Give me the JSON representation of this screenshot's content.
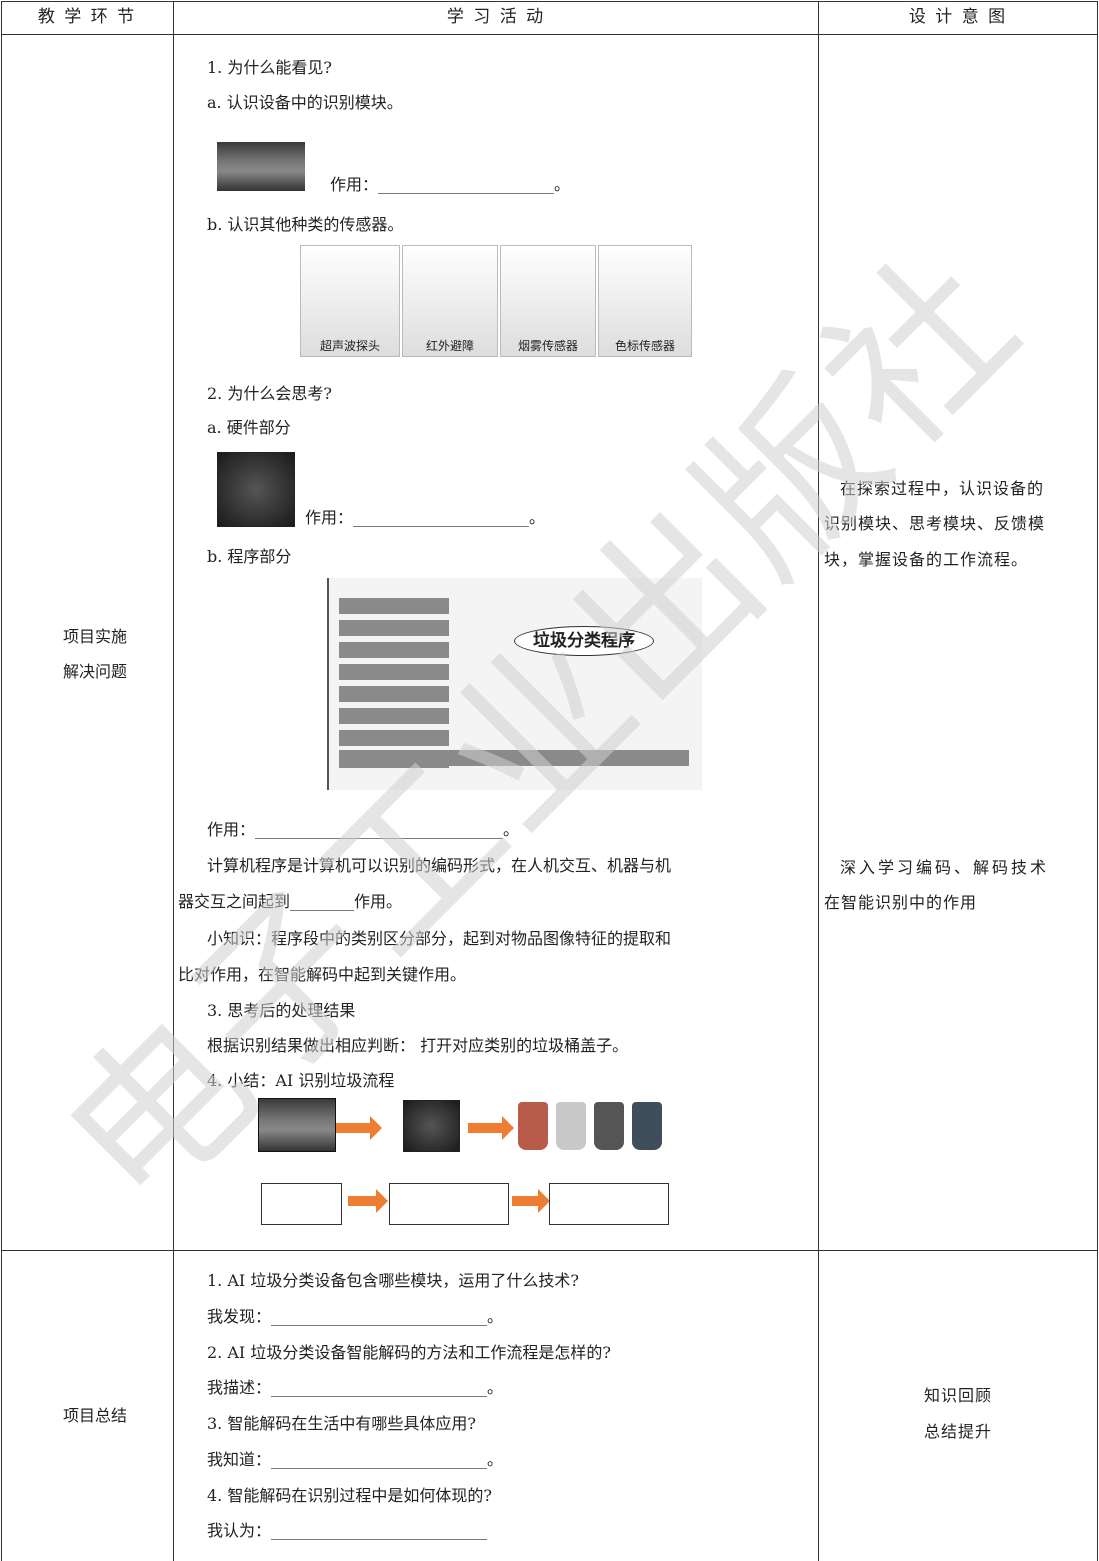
{
  "watermark": "电子工业出版社",
  "table": {
    "headers": [
      "教 学 环 节",
      "学 习 活 动",
      "设 计 意 图"
    ],
    "rows": [
      {
        "stage": [
          "项目实施",
          "解决问题"
        ],
        "activities": [
          "1. 为什么能看见?",
          "a. 认识设备中的识别模块。",
          "作用：______________________。",
          "b. 认识其他种类的传感器。",
          "2. 为什么会思考?",
          "a. 硬件部分",
          "作用：______________________。",
          "b. 程序部分",
          "作用：_______________________________。",
          "计算机程序是计算机可以识别的编码形式，在人机交互、机器与机",
          "器交互之间起到________作用。",
          "小知识：程序段中的类别区分部分，起到对物品图像特征的提取和",
          "比对作用，在智能解码中起到关键作用。",
          "3. 思考后的处理结果",
          "根据识别结果做出相应判断： 打开对应类别的垃圾桶盖子。",
          "4. 小结：AI 识别垃圾流程"
        ],
        "sensor_labels": [
          "超声波探头",
          "红外避障",
          "烟雾传感器",
          "色标传感器"
        ],
        "program_bubble": "垃圾分类程序",
        "intents": [
          "在探索过程中，认识设备的",
          "识别模块、思考模块、反馈模",
          "块，掌握设备的工作流程。",
          "深入学习编码、解码技术",
          "在智能识别中的作用"
        ]
      },
      {
        "stage": [
          "项目总结"
        ],
        "activities": [
          "1. AI 垃圾分类设备包含哪些模块，运用了什么技术?",
          "我发现：___________________________。",
          "2. AI 垃圾分类设备智能解码的方法和工作流程是怎样的?",
          "我描述：___________________________。",
          "3. 智能解码在生活中有哪些具体应用?",
          "我知道：___________________________。",
          "4. 智能解码在识别过程中是如何体现的?",
          "我认为：___________________________"
        ],
        "intents": [
          "知识回顾",
          "总结提升"
        ]
      }
    ]
  }
}
